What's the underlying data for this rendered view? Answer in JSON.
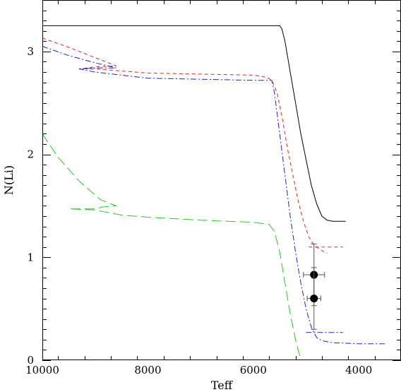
{
  "chart_data": {
    "type": "line",
    "xlabel": "Teff",
    "ylabel": "N(Li)",
    "xlim": [
      10000,
      3200
    ],
    "ylim": [
      0,
      3.5
    ],
    "x_reversed": true,
    "x_ticks": [
      10000,
      8000,
      6000,
      4000
    ],
    "y_ticks": [
      0,
      1,
      2,
      3
    ],
    "grid": false,
    "legend": "none",
    "series": [
      {
        "color": "#000000",
        "dash": "",
        "points": [
          [
            10000,
            3.25
          ],
          [
            5500,
            3.25
          ],
          [
            5460,
            3.22
          ],
          [
            5400,
            3.1
          ],
          [
            5300,
            2.8
          ],
          [
            5200,
            2.5
          ],
          [
            5100,
            2.2
          ],
          [
            5000,
            1.95
          ],
          [
            4900,
            1.7
          ],
          [
            4800,
            1.52
          ],
          [
            4700,
            1.4
          ],
          [
            4600,
            1.36
          ],
          [
            4500,
            1.35
          ],
          [
            4250,
            1.35
          ]
        ]
      },
      {
        "color": "#dd2222",
        "dash": "5,4",
        "points": [
          [
            10000,
            3.13
          ],
          [
            9500,
            3.04
          ],
          [
            9000,
            2.94
          ],
          [
            8600,
            2.86
          ],
          [
            9000,
            2.85
          ],
          [
            9300,
            2.83
          ],
          [
            9000,
            2.83
          ],
          [
            8500,
            2.81
          ],
          [
            8000,
            2.79
          ],
          [
            7000,
            2.78
          ],
          [
            6000,
            2.77
          ],
          [
            5750,
            2.75
          ],
          [
            5650,
            2.72
          ],
          [
            5550,
            2.6
          ],
          [
            5450,
            2.35
          ],
          [
            5350,
            2.05
          ],
          [
            5250,
            1.8
          ],
          [
            5150,
            1.55
          ],
          [
            5050,
            1.35
          ],
          [
            4950,
            1.2
          ],
          [
            4850,
            1.12
          ],
          [
            4750,
            1.08
          ],
          [
            4650,
            1.05
          ],
          [
            4600,
            1.04
          ]
        ]
      },
      {
        "color": "#dd2222",
        "dash": "5,4",
        "points": [
          [
            4950,
            1.1
          ],
          [
            4500,
            1.1
          ],
          [
            4300,
            1.1
          ]
        ]
      },
      {
        "color": "#2222cc",
        "dash": "8,3,2,3",
        "points": [
          [
            10000,
            3.05
          ],
          [
            9500,
            2.96
          ],
          [
            9000,
            2.89
          ],
          [
            8600,
            2.84
          ],
          [
            9000,
            2.84
          ],
          [
            9300,
            2.83
          ],
          [
            9000,
            2.8
          ],
          [
            8500,
            2.77
          ],
          [
            8000,
            2.74
          ],
          [
            7000,
            2.73
          ],
          [
            6000,
            2.72
          ],
          [
            5650,
            2.72
          ],
          [
            5600,
            2.6
          ],
          [
            5500,
            2.2
          ],
          [
            5400,
            1.8
          ],
          [
            5300,
            1.4
          ],
          [
            5200,
            1.05
          ],
          [
            5100,
            0.75
          ],
          [
            5000,
            0.5
          ],
          [
            4900,
            0.32
          ],
          [
            4800,
            0.22
          ],
          [
            4700,
            0.19
          ],
          [
            4500,
            0.17
          ],
          [
            4000,
            0.16
          ],
          [
            3500,
            0.16
          ]
        ]
      },
      {
        "color": "#2222cc",
        "dash": "8,3,2,3",
        "points": [
          [
            5000,
            0.27
          ],
          [
            4600,
            0.27
          ],
          [
            4300,
            0.27
          ]
        ]
      },
      {
        "color": "#22cc22",
        "dash": "14,6",
        "points": [
          [
            10000,
            2.2
          ],
          [
            9700,
            1.97
          ],
          [
            9300,
            1.74
          ],
          [
            8900,
            1.56
          ],
          [
            8600,
            1.5
          ],
          [
            8850,
            1.49
          ],
          [
            9000,
            1.47
          ],
          [
            9500,
            1.47
          ],
          [
            9000,
            1.46
          ],
          [
            8500,
            1.41
          ],
          [
            8000,
            1.39
          ],
          [
            7000,
            1.36
          ],
          [
            6000,
            1.34
          ],
          [
            5700,
            1.32
          ],
          [
            5600,
            1.25
          ],
          [
            5500,
            1.05
          ],
          [
            5400,
            0.75
          ],
          [
            5300,
            0.45
          ],
          [
            5200,
            0.2
          ],
          [
            5100,
            0.0
          ]
        ]
      }
    ],
    "observations": [
      {
        "x": 4850,
        "y": 0.83,
        "xerr": 200,
        "yerr": 0.3
      },
      {
        "x": 4850,
        "y": 0.6,
        "xerr": 130,
        "yerr": 0.3
      }
    ]
  }
}
